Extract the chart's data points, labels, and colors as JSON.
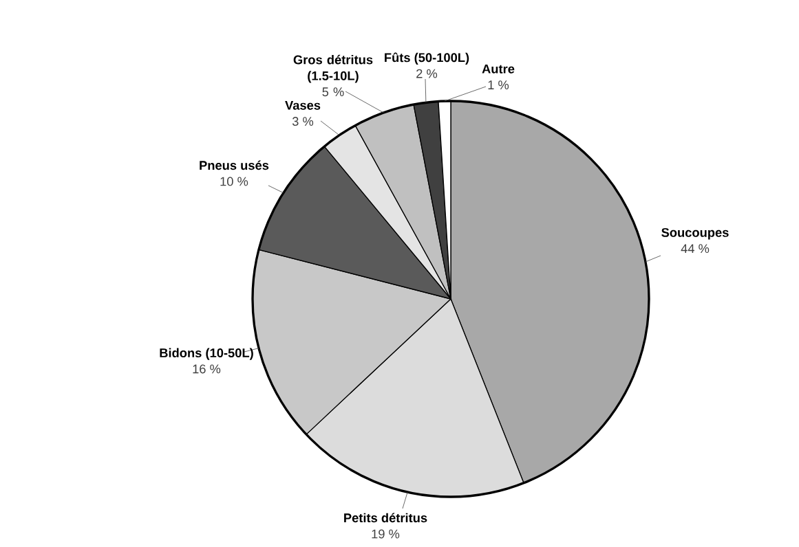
{
  "chart_data": {
    "type": "pie",
    "categories": [
      "Soucoupes",
      "Petits détritus",
      "Bidons (10-50L)",
      "Pneus usés",
      "Vases",
      "Gros détritus (1.5-10L)",
      "Fûts (50-100L)",
      "Autre"
    ],
    "values": [
      44,
      19,
      16,
      10,
      3,
      5,
      2,
      1
    ],
    "value_labels": [
      "44 %",
      "19 %",
      "16 %",
      "10 %",
      "3 %",
      "5 %",
      "2 %",
      "1 %"
    ],
    "colors": [
      "#a8a8a8",
      "#dcdcdc",
      "#c8c8c8",
      "#5a5a5a",
      "#e4e4e4",
      "#c0c0c0",
      "#404040",
      "#ffffff"
    ]
  }
}
